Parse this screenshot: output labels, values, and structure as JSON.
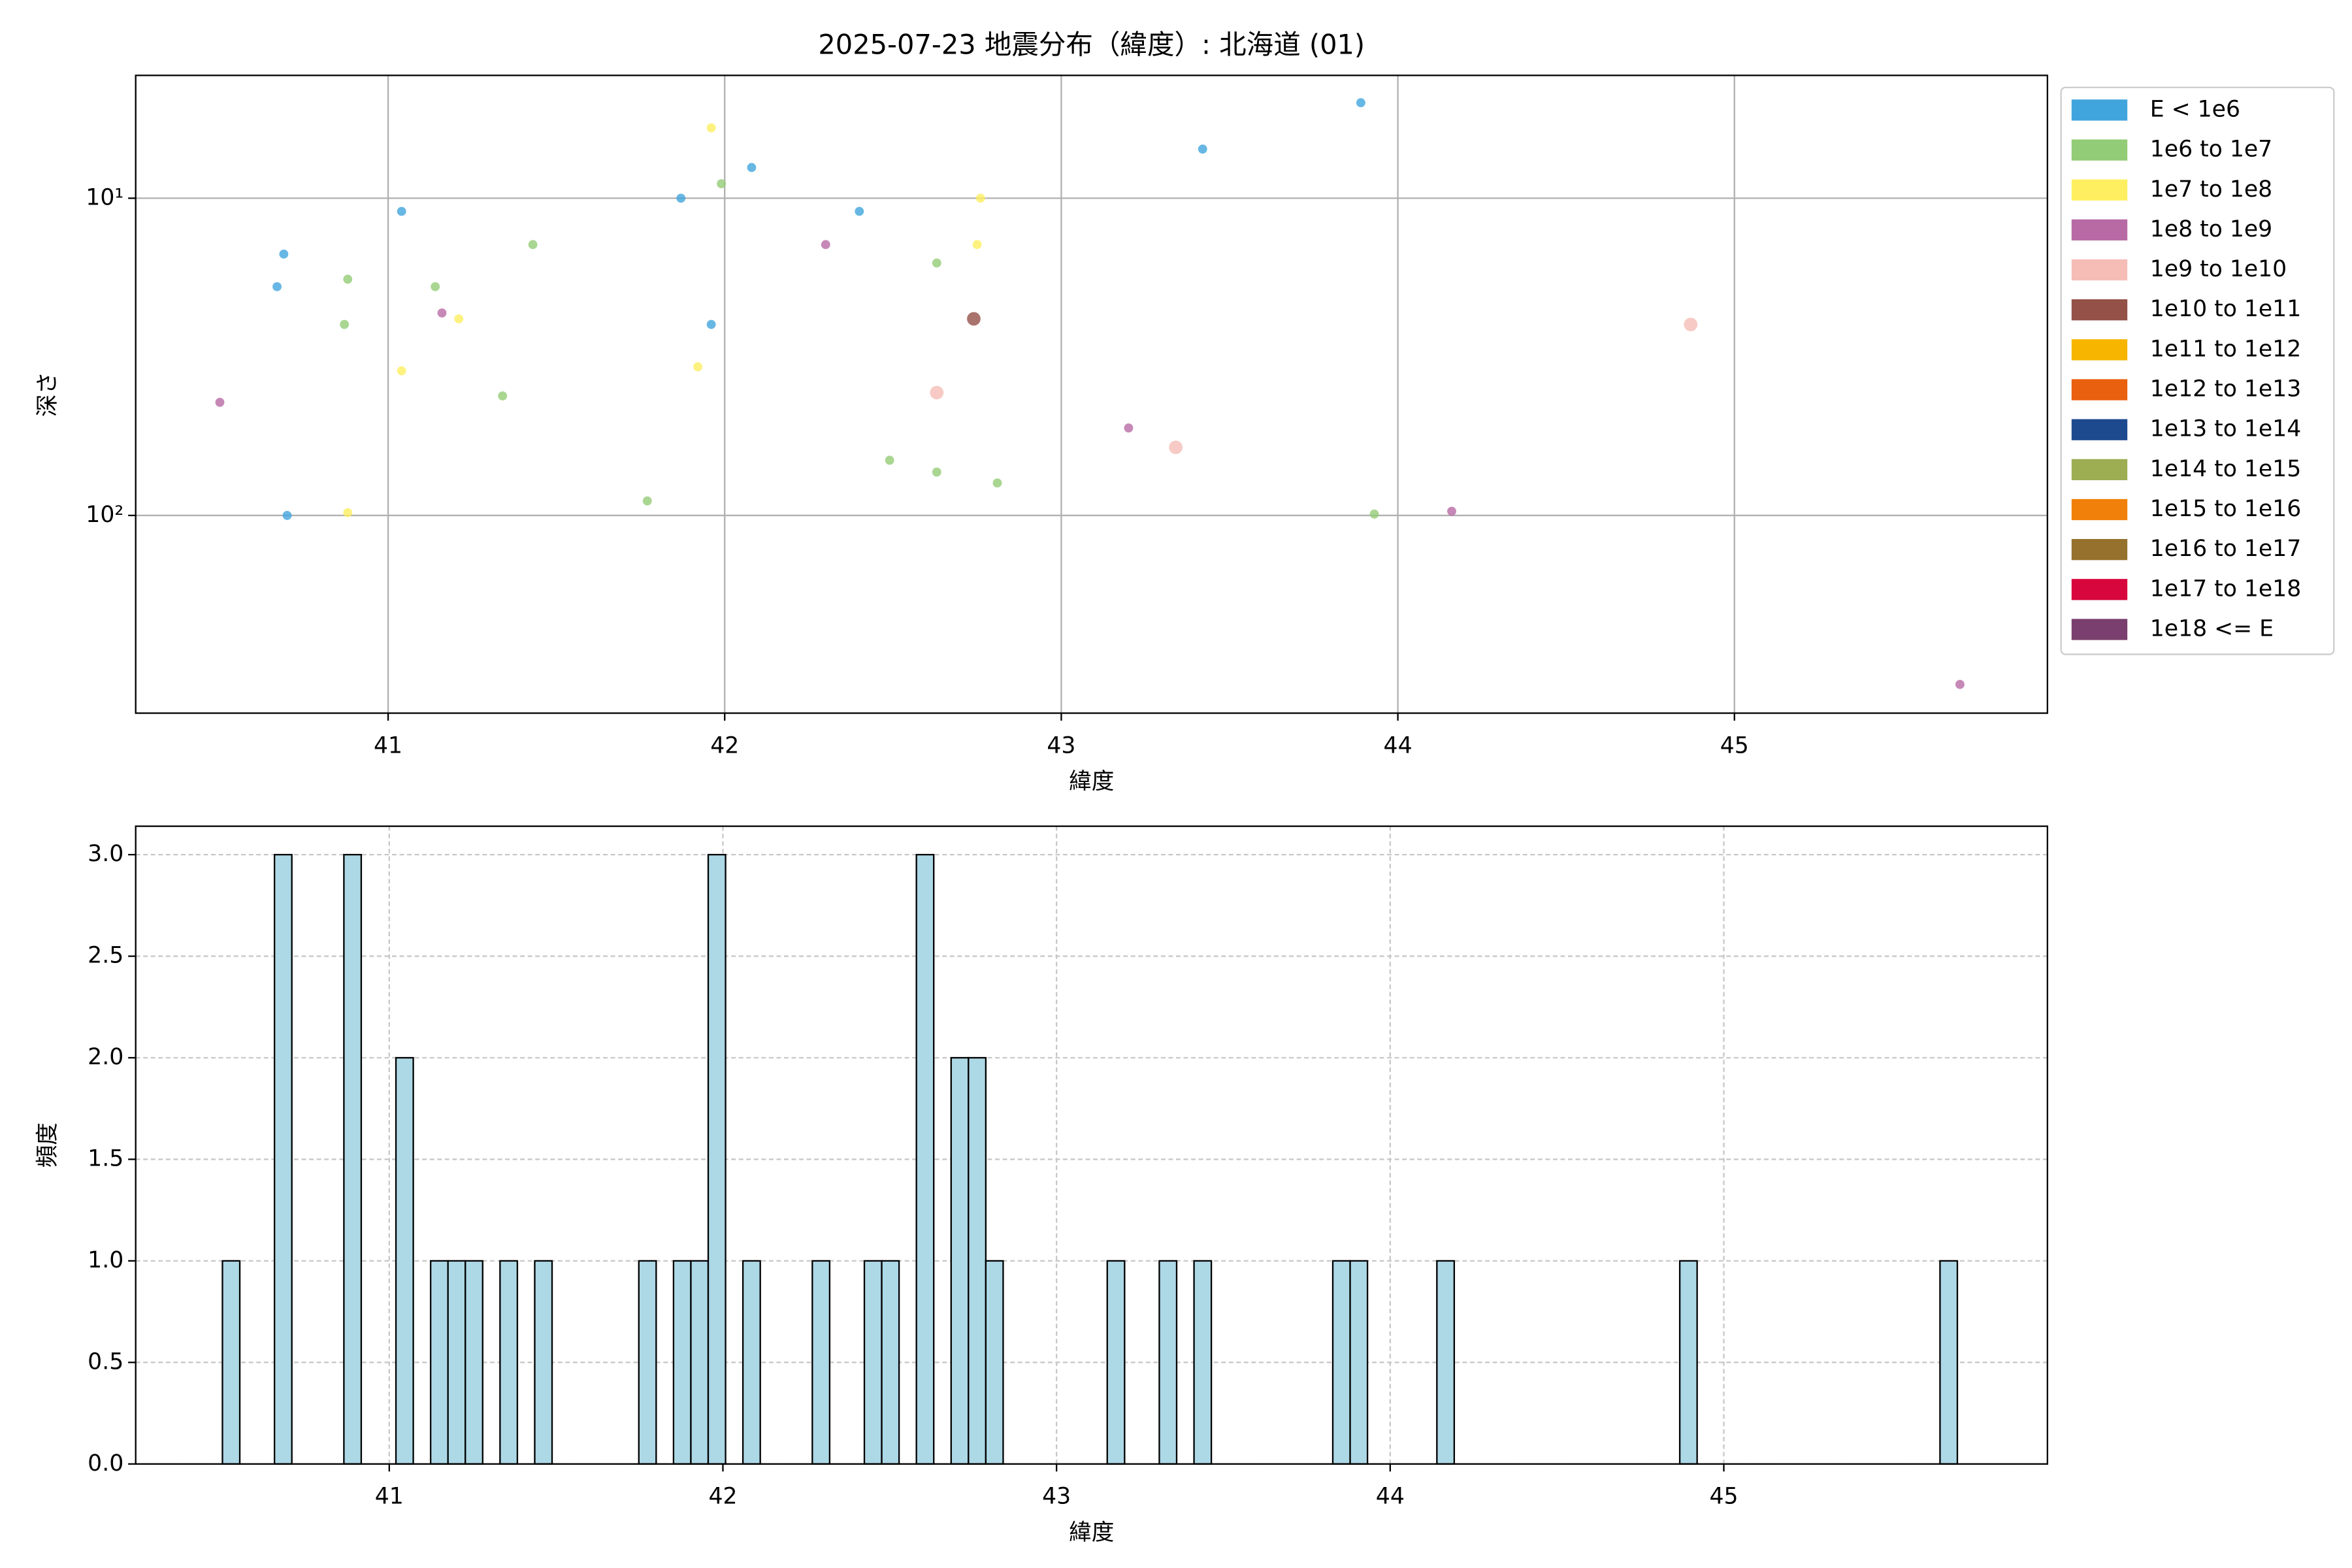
{
  "chart_data": [
    {
      "type": "scatter",
      "title": "2025-07-23 地震分布（緯度）: 北海道 (01)",
      "xlabel": "緯度",
      "ylabel": "深さ",
      "xlim": [
        40.25,
        45.93
      ],
      "xticks": [
        41,
        42,
        43,
        44,
        45
      ],
      "ylim": [
        4.1,
        420
      ],
      "y_log": true,
      "y_inverted": true,
      "yticks": [
        {
          "value": 10,
          "label": "10¹"
        },
        {
          "value": 100,
          "label": "10²"
        }
      ],
      "grid": true,
      "legend": "outside right",
      "series": [
        {
          "name": "E < 1e6",
          "color": "#41a5dd",
          "x": [
            40.69,
            40.67,
            40.7,
            41.04,
            41.87,
            41.96,
            42.08,
            42.4,
            43.42,
            43.89
          ],
          "values": [
            15,
            19,
            100,
            11,
            10,
            25,
            8,
            11,
            7,
            5
          ]
        },
        {
          "name": "1e6 to 1e7",
          "color": "#93cc76",
          "x": [
            40.88,
            40.87,
            41.14,
            41.43,
            41.34,
            41.77,
            41.99,
            42.63,
            42.49,
            42.63,
            42.81,
            43.93
          ],
          "values": [
            18,
            25,
            19,
            14,
            42,
            90,
            9,
            16,
            67,
            73,
            79,
            99
          ]
        },
        {
          "name": "1e7 to 1e8",
          "color": "#fdef60",
          "x": [
            41.96,
            41.21,
            41.04,
            41.92,
            40.88,
            42.76,
            42.75
          ],
          "values": [
            6,
            24,
            35,
            34,
            98,
            10,
            14
          ]
        },
        {
          "name": "1e8 to 1e9",
          "color": "#b86aa5",
          "x": [
            40.5,
            41.16,
            42.3,
            43.2,
            44.16,
            45.67
          ],
          "values": [
            44,
            23,
            14,
            53,
            97,
            341
          ]
        },
        {
          "name": "1e9 to 1e10",
          "color": "#f5bdb6",
          "x": [
            42.63,
            43.34,
            44.87
          ],
          "values": [
            41,
            61,
            25
          ]
        },
        {
          "name": "1e10 to 1e11",
          "color": "#935148",
          "x": [
            42.74
          ],
          "values": [
            24
          ]
        },
        {
          "name": "1e11 to 1e12",
          "color": "#f7b500",
          "x": [],
          "values": []
        },
        {
          "name": "1e12 to 1e13",
          "color": "#e9600e",
          "x": [],
          "values": []
        },
        {
          "name": "1e13 to 1e14",
          "color": "#1d4a8f",
          "x": [],
          "values": []
        },
        {
          "name": "1e14 to 1e15",
          "color": "#9cad52",
          "x": [],
          "values": []
        },
        {
          "name": "1e15 to 1e16",
          "color": "#f08009",
          "x": [],
          "values": []
        },
        {
          "name": "1e16 to 1e17",
          "color": "#95712d",
          "x": [],
          "values": []
        },
        {
          "name": "1e17 to 1e18",
          "color": "#d7063c",
          "x": [],
          "values": []
        },
        {
          "name": "1e18 <= E",
          "color": "#7a3f6e",
          "x": [],
          "values": []
        }
      ]
    },
    {
      "type": "histogram",
      "xlabel": "緯度",
      "ylabel": "頻度",
      "color": "#add8e6",
      "edgecolor": "#000000",
      "xlim": [
        40.24,
        45.97
      ],
      "xticks": [
        41,
        42,
        43,
        44,
        45
      ],
      "ylim": [
        0,
        3.14
      ],
      "yticks": [
        {
          "value": 0,
          "label": "0.0"
        },
        {
          "value": 0.5,
          "label": "0.5"
        },
        {
          "value": 1,
          "label": "1.0"
        },
        {
          "value": 1.5,
          "label": "1.5"
        },
        {
          "value": 2,
          "label": "2.0"
        },
        {
          "value": 2.5,
          "label": "2.5"
        },
        {
          "value": 3,
          "label": "3.0"
        }
      ],
      "grid": true,
      "bins": [
        40.5,
        40.552,
        40.604,
        40.656,
        40.708,
        40.76,
        40.812,
        40.864,
        40.916,
        40.968,
        41.02,
        41.072,
        41.124,
        41.176,
        41.228,
        41.28,
        41.332,
        41.384,
        41.436,
        41.488,
        41.54,
        41.592,
        41.644,
        41.696,
        41.748,
        41.8,
        41.852,
        41.904,
        41.956,
        42.008,
        42.06,
        42.112,
        42.164,
        42.216,
        42.268,
        42.32,
        42.372,
        42.424,
        42.476,
        42.528,
        42.58,
        42.632,
        42.684,
        42.736,
        42.788,
        42.84,
        42.892,
        42.944,
        42.996,
        43.048,
        43.1,
        43.152,
        43.204,
        43.256,
        43.308,
        43.36,
        43.412,
        43.464,
        43.516,
        43.568,
        43.62,
        43.672,
        43.724,
        43.776,
        43.828,
        43.88,
        43.932,
        43.984,
        44.036,
        44.088,
        44.14,
        44.192,
        44.244,
        44.296,
        44.348,
        44.4,
        44.452,
        44.504,
        44.556,
        44.608,
        44.66,
        44.712,
        44.764,
        44.816,
        44.868,
        44.92,
        44.972,
        45.024,
        45.076,
        45.128,
        45.18,
        45.232,
        45.284,
        45.336,
        45.388,
        45.44,
        45.492,
        45.544,
        45.596,
        45.648,
        45.7
      ],
      "values": [
        1,
        0,
        0,
        3,
        0,
        0,
        0,
        3,
        0,
        0,
        2,
        0,
        1,
        1,
        1,
        0,
        1,
        0,
        1,
        0,
        0,
        0,
        0,
        0,
        1,
        0,
        1,
        1,
        3,
        0,
        1,
        0,
        0,
        0,
        1,
        0,
        0,
        1,
        1,
        0,
        3,
        0,
        2,
        2,
        1,
        0,
        0,
        0,
        0,
        0,
        0,
        1,
        0,
        0,
        1,
        0,
        1,
        0,
        0,
        0,
        0,
        0,
        0,
        0,
        1,
        1,
        0,
        0,
        0,
        0,
        1,
        0,
        0,
        0,
        0,
        0,
        0,
        0,
        0,
        0,
        0,
        0,
        0,
        0,
        1,
        0,
        0,
        0,
        0,
        0,
        0,
        0,
        0,
        0,
        0,
        0,
        0,
        0,
        0,
        1
      ]
    }
  ]
}
